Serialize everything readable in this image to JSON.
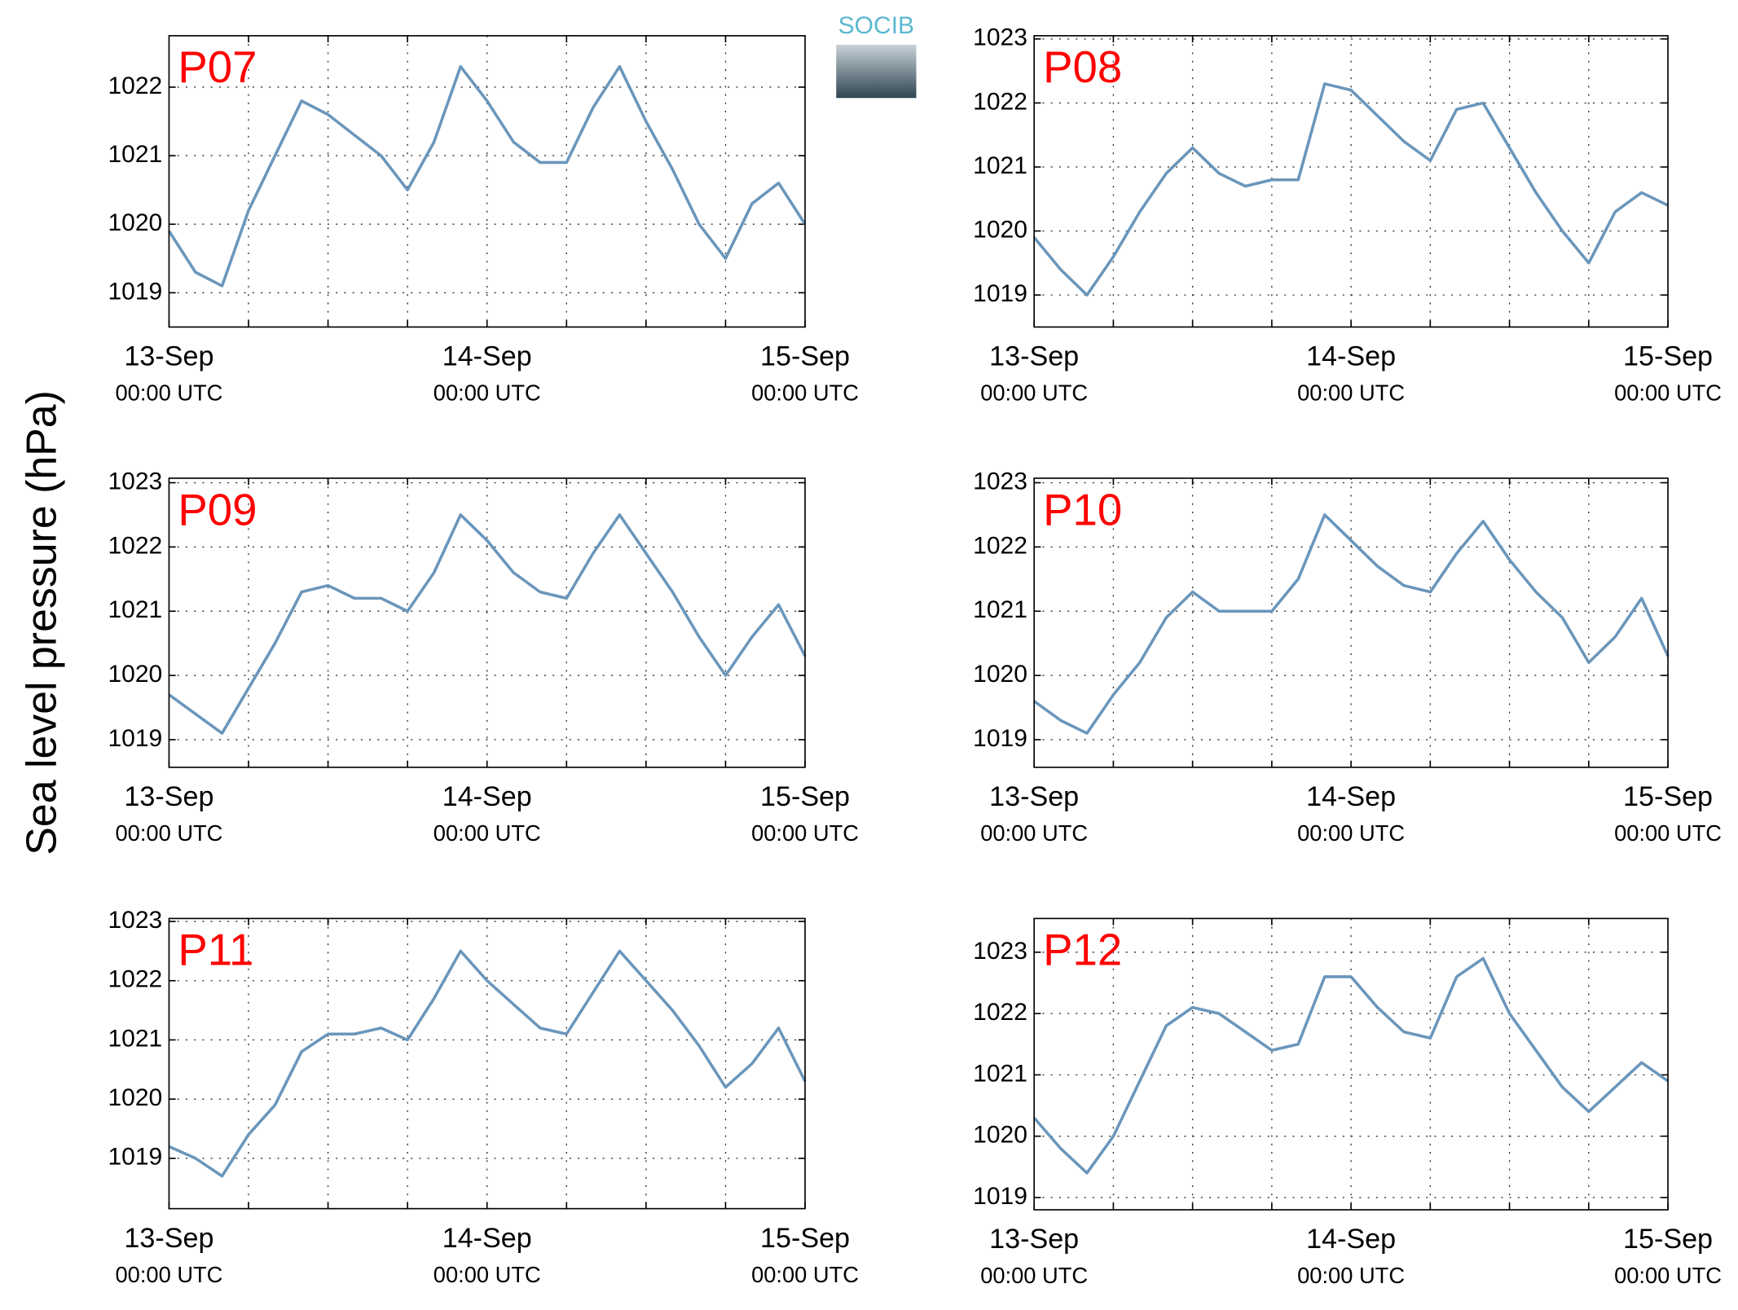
{
  "ylabel": "Sea level pressure (hPa)",
  "logo": "SOCIB",
  "chart_data": [
    {
      "type": "line",
      "title": "P07",
      "color": "#6a96bb",
      "x": [
        0,
        2,
        4,
        6,
        8,
        10,
        12,
        14,
        16,
        18,
        20,
        22,
        24,
        26,
        28,
        30,
        32,
        34,
        36,
        38,
        40,
        42,
        44,
        46,
        48
      ],
      "values": [
        1019.9,
        1019.3,
        1019.1,
        1020.2,
        1021.0,
        1021.8,
        1021.6,
        1021.3,
        1021.0,
        1020.5,
        1021.2,
        1022.3,
        1021.8,
        1021.2,
        1020.9,
        1020.9,
        1021.7,
        1022.3,
        1021.5,
        1020.8,
        1020.0,
        1019.5,
        1020.3,
        1020.6,
        1020.0
      ],
      "xlim": [
        0,
        48
      ],
      "xticks": [
        {
          "value": 0,
          "label": [
            "13-Sep",
            "00:00 UTC"
          ]
        },
        {
          "value": 24,
          "label": [
            "14-Sep",
            "00:00 UTC"
          ]
        },
        {
          "value": 48,
          "label": [
            "15-Sep",
            "00:00 UTC"
          ]
        }
      ],
      "xminorticks": [
        6,
        12,
        18,
        30,
        36,
        42
      ],
      "ylim": [
        1018.5,
        1022.75
      ],
      "yticks": [
        1019,
        1020,
        1021,
        1022
      ],
      "grid": true
    },
    {
      "type": "line",
      "title": "P08",
      "color": "#6a96bb",
      "x": [
        0,
        2,
        4,
        6,
        8,
        10,
        12,
        14,
        16,
        18,
        20,
        22,
        24,
        26,
        28,
        30,
        32,
        34,
        36,
        38,
        40,
        42,
        44,
        46,
        48
      ],
      "values": [
        1019.9,
        1019.4,
        1019.0,
        1019.6,
        1020.3,
        1020.9,
        1021.3,
        1020.9,
        1020.7,
        1020.8,
        1020.8,
        1022.3,
        1022.2,
        1021.8,
        1021.4,
        1021.1,
        1021.9,
        1022.0,
        1021.3,
        1020.6,
        1020.0,
        1019.5,
        1020.3,
        1020.6,
        1020.4
      ],
      "xlim": [
        0,
        48
      ],
      "xticks": [
        {
          "value": 0,
          "label": [
            "13-Sep",
            "00:00 UTC"
          ]
        },
        {
          "value": 24,
          "label": [
            "14-Sep",
            "00:00 UTC"
          ]
        },
        {
          "value": 48,
          "label": [
            "15-Sep",
            "00:00 UTC"
          ]
        }
      ],
      "xminorticks": [
        6,
        12,
        18,
        30,
        36,
        42
      ],
      "ylim": [
        1018.5,
        1023.05
      ],
      "yticks": [
        1019,
        1020,
        1021,
        1022,
        1023
      ],
      "grid": true
    },
    {
      "type": "line",
      "title": "P09",
      "color": "#6a96bb",
      "x": [
        0,
        2,
        4,
        6,
        8,
        10,
        12,
        14,
        16,
        18,
        20,
        22,
        24,
        26,
        28,
        30,
        32,
        34,
        36,
        38,
        40,
        42,
        44,
        46,
        48
      ],
      "values": [
        1019.7,
        1019.4,
        1019.1,
        1019.8,
        1020.5,
        1021.3,
        1021.4,
        1021.2,
        1021.2,
        1021.0,
        1021.6,
        1022.5,
        1022.1,
        1021.6,
        1021.3,
        1021.2,
        1021.9,
        1022.5,
        1021.9,
        1021.3,
        1020.6,
        1020.0,
        1020.6,
        1021.1,
        1020.3
      ],
      "xlim": [
        0,
        48
      ],
      "xticks": [
        {
          "value": 0,
          "label": [
            "13-Sep",
            "00:00 UTC"
          ]
        },
        {
          "value": 24,
          "label": [
            "14-Sep",
            "00:00 UTC"
          ]
        },
        {
          "value": 48,
          "label": [
            "15-Sep",
            "00:00 UTC"
          ]
        }
      ],
      "xminorticks": [
        6,
        12,
        18,
        30,
        36,
        42
      ],
      "ylim": [
        1018.57,
        1023.07
      ],
      "yticks": [
        1019,
        1020,
        1021,
        1022,
        1023
      ],
      "grid": true
    },
    {
      "type": "line",
      "title": "P10",
      "color": "#6a96bb",
      "x": [
        0,
        2,
        4,
        6,
        8,
        10,
        12,
        14,
        16,
        18,
        20,
        22,
        24,
        26,
        28,
        30,
        32,
        34,
        36,
        38,
        40,
        42,
        44,
        46,
        48
      ],
      "values": [
        1019.6,
        1019.3,
        1019.1,
        1019.7,
        1020.2,
        1020.9,
        1021.3,
        1021.0,
        1021.0,
        1021.0,
        1021.5,
        1022.5,
        1022.1,
        1021.7,
        1021.4,
        1021.3,
        1021.9,
        1022.4,
        1021.8,
        1021.3,
        1020.9,
        1020.2,
        1020.6,
        1021.2,
        1020.3
      ],
      "xlim": [
        0,
        48
      ],
      "xticks": [
        {
          "value": 0,
          "label": [
            "13-Sep",
            "00:00 UTC"
          ]
        },
        {
          "value": 24,
          "label": [
            "14-Sep",
            "00:00 UTC"
          ]
        },
        {
          "value": 48,
          "label": [
            "15-Sep",
            "00:00 UTC"
          ]
        }
      ],
      "xminorticks": [
        6,
        12,
        18,
        30,
        36,
        42
      ],
      "ylim": [
        1018.57,
        1023.07
      ],
      "yticks": [
        1019,
        1020,
        1021,
        1022,
        1023
      ],
      "grid": true
    },
    {
      "type": "line",
      "title": "P11",
      "color": "#6a96bb",
      "x": [
        0,
        2,
        4,
        6,
        8,
        10,
        12,
        14,
        16,
        18,
        20,
        22,
        24,
        26,
        28,
        30,
        32,
        34,
        36,
        38,
        40,
        42,
        44,
        46,
        48
      ],
      "values": [
        1019.2,
        1019.0,
        1018.7,
        1019.4,
        1019.9,
        1020.8,
        1021.1,
        1021.1,
        1021.2,
        1021.0,
        1021.7,
        1022.5,
        1022.0,
        1021.6,
        1021.2,
        1021.1,
        1021.8,
        1022.5,
        1022.0,
        1021.5,
        1020.9,
        1020.2,
        1020.6,
        1021.2,
        1020.3
      ],
      "xlim": [
        0,
        48
      ],
      "xticks": [
        {
          "value": 0,
          "label": [
            "13-Sep",
            "00:00 UTC"
          ]
        },
        {
          "value": 24,
          "label": [
            "14-Sep",
            "00:00 UTC"
          ]
        },
        {
          "value": 48,
          "label": [
            "15-Sep",
            "00:00 UTC"
          ]
        }
      ],
      "xminorticks": [
        6,
        12,
        18,
        30,
        36,
        42
      ],
      "ylim": [
        1018.15,
        1023.05
      ],
      "yticks": [
        1019,
        1020,
        1021,
        1022,
        1023
      ],
      "grid": true
    },
    {
      "type": "line",
      "title": "P12",
      "color": "#6a96bb",
      "x": [
        0,
        2,
        4,
        6,
        8,
        10,
        12,
        14,
        16,
        18,
        20,
        22,
        24,
        26,
        28,
        30,
        32,
        34,
        36,
        38,
        40,
        42,
        44,
        46,
        48
      ],
      "values": [
        1020.3,
        1019.8,
        1019.4,
        1020.0,
        1020.9,
        1021.8,
        1022.1,
        1022.0,
        1021.7,
        1021.4,
        1021.5,
        1022.6,
        1022.6,
        1022.1,
        1021.7,
        1021.6,
        1022.6,
        1022.9,
        1022.0,
        1021.4,
        1020.8,
        1020.4,
        1020.8,
        1021.2,
        1020.9
      ],
      "xlim": [
        0,
        48
      ],
      "xticks": [
        {
          "value": 0,
          "label": [
            "13-Sep",
            "00:00 UTC"
          ]
        },
        {
          "value": 24,
          "label": [
            "14-Sep",
            "00:00 UTC"
          ]
        },
        {
          "value": 48,
          "label": [
            "15-Sep",
            "00:00 UTC"
          ]
        }
      ],
      "xminorticks": [
        6,
        12,
        18,
        30,
        36,
        42
      ],
      "ylim": [
        1018.8,
        1023.55
      ],
      "yticks": [
        1019,
        1020,
        1021,
        1022,
        1023
      ],
      "grid": true
    }
  ]
}
